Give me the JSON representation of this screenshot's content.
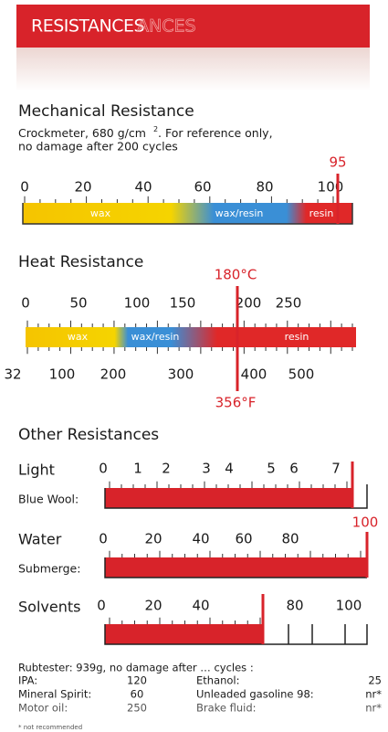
{
  "header": {
    "title": "RESISTANCES",
    "ghost": "ANCES"
  },
  "mechanical": {
    "title": "Mechanical Resistance",
    "subtitle": [
      "Crockmeter, 680 g/cm",
      "2",
      ". For reference only,",
      "no damage after 200 cycles"
    ],
    "ticks": [
      0,
      20,
      40,
      60,
      80,
      100
    ],
    "marker": 95,
    "zones": [
      "wax",
      "wax/resin",
      "resin"
    ]
  },
  "heat": {
    "title": "Heat Resistance",
    "celsius_ticks": [
      0,
      50,
      100,
      150,
      200,
      250
    ],
    "fahrenheit_ticks": [
      32,
      100,
      200,
      300,
      400,
      500
    ],
    "marker_c": "180°C",
    "marker_f": "356°F",
    "zones": [
      "wax",
      "wax/resin",
      "resin"
    ]
  },
  "other": {
    "title": "Other Resistances",
    "light": {
      "label": "Light",
      "sub": "Blue Wool:",
      "ticks": [
        0,
        1,
        2,
        3,
        4,
        5,
        6,
        7
      ]
    },
    "water": {
      "label": "Water",
      "sub": "Submerge:",
      "ticks": [
        0,
        20,
        40,
        60,
        80
      ],
      "marker": 100
    },
    "solvents": {
      "label": "Solvents",
      "ticks": [
        0,
        20,
        40,
        80,
        100
      ]
    }
  },
  "rubtester": {
    "heading": "Rubtester: 939g, no damage after … cycles :",
    "rows": [
      [
        "IPA:",
        "120",
        "Ethanol:",
        "25"
      ],
      [
        "Mineral Spirit:",
        "60",
        "Unleaded gasoline 98:",
        "nr*"
      ],
      [
        "Motor oil:",
        "250",
        "Brake fluid:",
        "nr*"
      ]
    ],
    "footnote": "* not recommended"
  }
}
